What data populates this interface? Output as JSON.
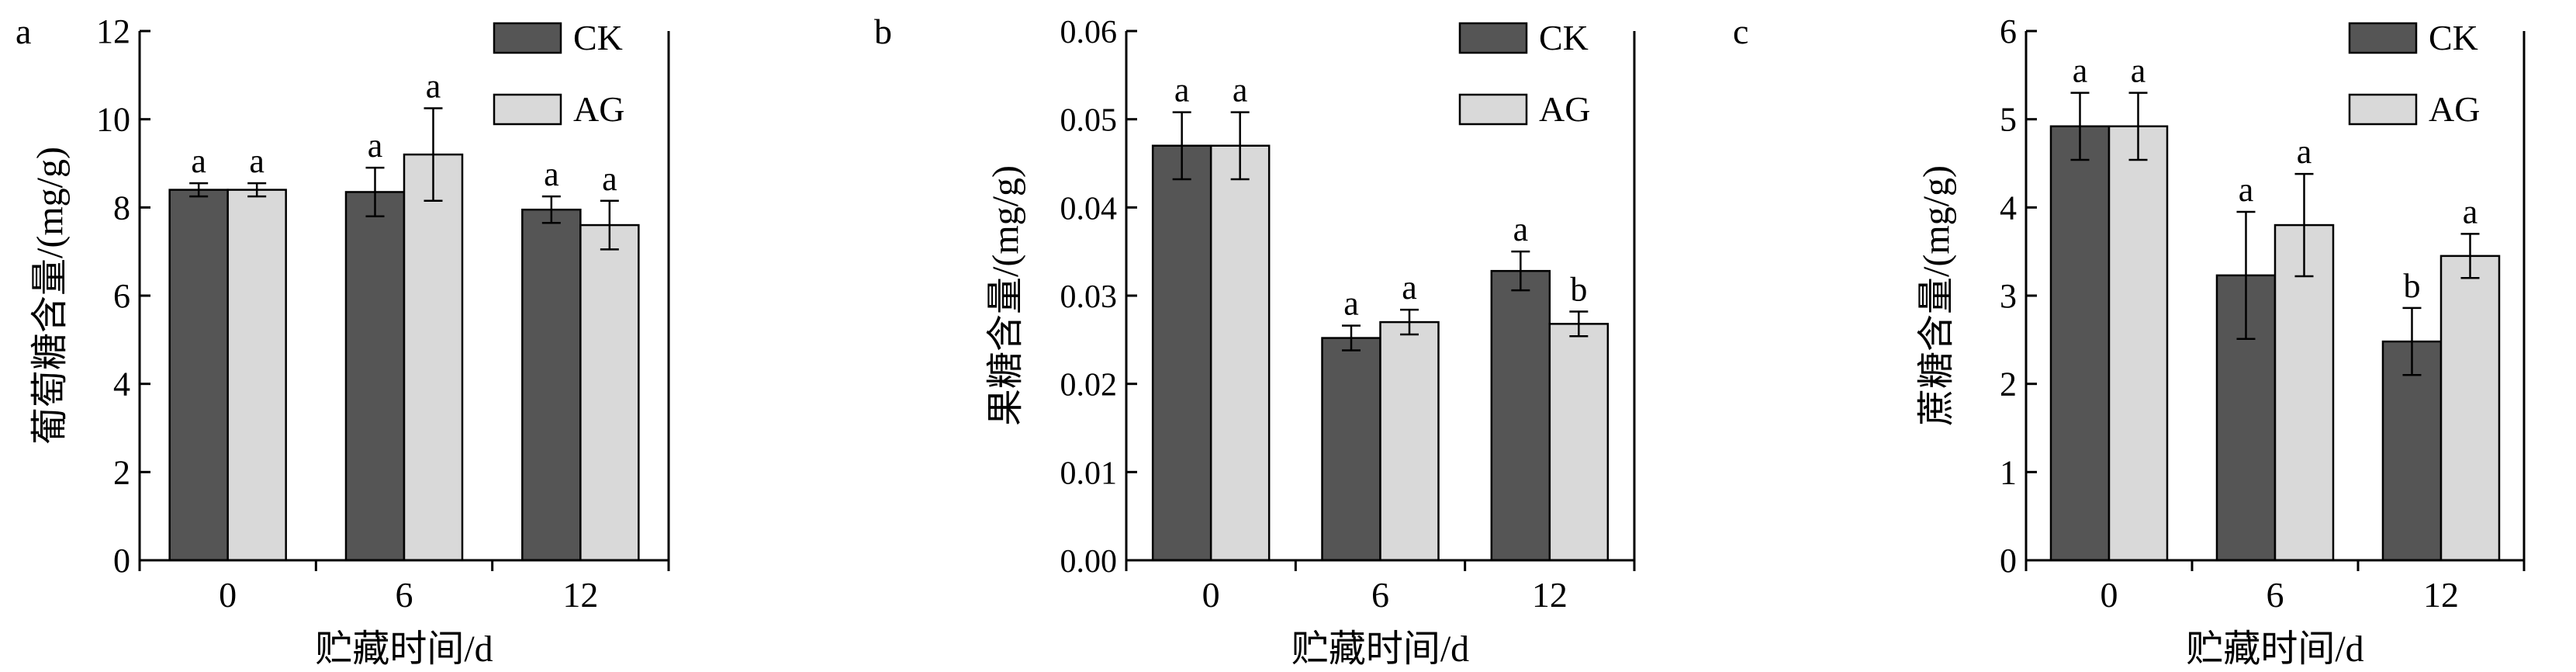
{
  "chart_data": [
    {
      "type": "bar",
      "panel_label": "a",
      "ylabel": "葡萄糖含量/(mg/g)",
      "xlabel": "贮藏时间/d",
      "categories": [
        "0",
        "6",
        "12"
      ],
      "ylim": [
        0,
        12
      ],
      "yticks": [
        "0",
        "2",
        "4",
        "6",
        "8",
        "10",
        "12"
      ],
      "legend_position": "top-right",
      "series": [
        {
          "name": "CK",
          "color": "#555555",
          "values": [
            8.4,
            8.35,
            7.95
          ],
          "errors": [
            0.15,
            0.55,
            0.3
          ],
          "labels": [
            "a",
            "a",
            "a"
          ]
        },
        {
          "name": "AG",
          "color": "#d9d9d9",
          "values": [
            8.4,
            9.2,
            7.6
          ],
          "errors": [
            0.15,
            1.05,
            0.55
          ],
          "labels": [
            "a",
            "a",
            "a"
          ]
        }
      ]
    },
    {
      "type": "bar",
      "panel_label": "b",
      "ylabel": "果糖含量/(mg/g)",
      "xlabel": "贮藏时间/d",
      "categories": [
        "0",
        "6",
        "12"
      ],
      "ylim": [
        0,
        0.06
      ],
      "yticks": [
        "0.00",
        "0.01",
        "0.02",
        "0.03",
        "0.04",
        "0.05",
        "0.06"
      ],
      "legend_position": "top-right",
      "series": [
        {
          "name": "CK",
          "color": "#555555",
          "values": [
            0.047,
            0.0252,
            0.0328
          ],
          "errors": [
            0.0038,
            0.0014,
            0.0022
          ],
          "labels": [
            "a",
            "a",
            "a"
          ]
        },
        {
          "name": "AG",
          "color": "#d9d9d9",
          "values": [
            0.047,
            0.027,
            0.0268
          ],
          "errors": [
            0.0038,
            0.0014,
            0.0014
          ],
          "labels": [
            "a",
            "a",
            "b"
          ]
        }
      ]
    },
    {
      "type": "bar",
      "panel_label": "c",
      "ylabel": "蔗糖含量/(mg/g)",
      "xlabel": "贮藏时间/d",
      "categories": [
        "0",
        "6",
        "12"
      ],
      "ylim": [
        0,
        6
      ],
      "yticks": [
        "0",
        "1",
        "2",
        "3",
        "4",
        "5",
        "6"
      ],
      "legend_position": "top-right",
      "series": [
        {
          "name": "CK",
          "color": "#555555",
          "values": [
            4.92,
            3.23,
            2.48
          ],
          "errors": [
            0.38,
            0.72,
            0.38
          ],
          "labels": [
            "a",
            "a",
            "b"
          ]
        },
        {
          "name": "AG",
          "color": "#d9d9d9",
          "values": [
            4.92,
            3.8,
            3.45
          ],
          "errors": [
            0.38,
            0.58,
            0.25
          ],
          "labels": [
            "a",
            "a",
            "a"
          ]
        }
      ]
    }
  ]
}
